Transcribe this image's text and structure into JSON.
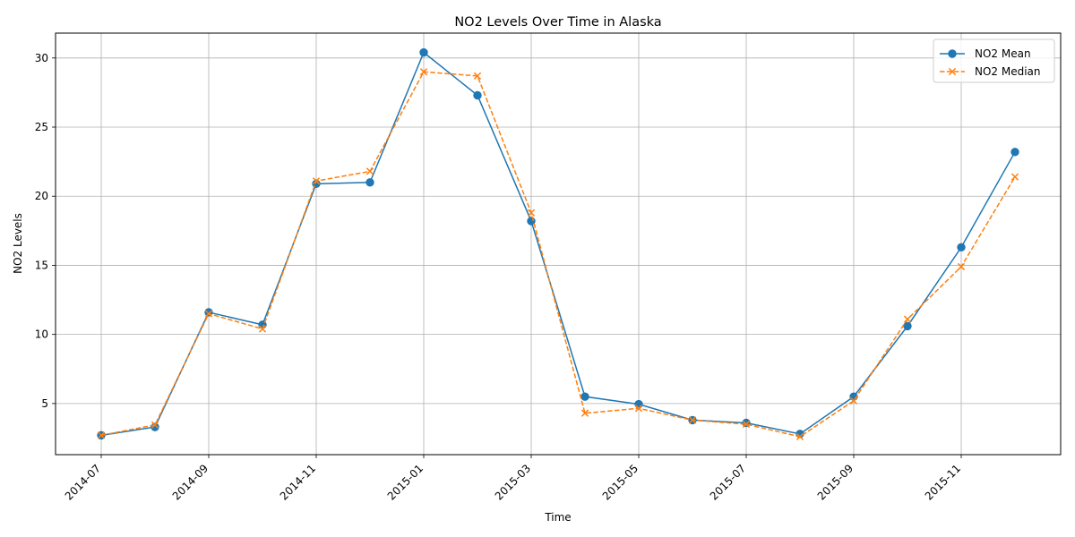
{
  "chart_data": {
    "type": "line",
    "title": "NO2 Levels Over Time in Alaska",
    "xlabel": "Time",
    "ylabel": "NO2 Levels",
    "x": [
      "2014-07",
      "2014-08",
      "2014-09",
      "2014-10",
      "2014-11",
      "2014-12",
      "2015-01",
      "2015-02",
      "2015-03",
      "2015-04",
      "2015-05",
      "2015-06",
      "2015-07",
      "2015-08",
      "2015-09",
      "2015-10",
      "2015-11",
      "2015-12"
    ],
    "x_ticks": [
      "2014-07",
      "2014-09",
      "2014-11",
      "2015-01",
      "2015-03",
      "2015-05",
      "2015-07",
      "2015-09",
      "2015-11"
    ],
    "y_ticks": [
      5,
      10,
      15,
      20,
      25,
      30
    ],
    "ylim": [
      1.3,
      31.8
    ],
    "grid": true,
    "legend_position": "top-right",
    "series": [
      {
        "name": "NO2 Mean",
        "color": "#1f77b4",
        "line_style": "solid",
        "marker": "circle",
        "values": [
          2.7,
          3.3,
          11.6,
          10.7,
          20.9,
          21.0,
          30.4,
          27.3,
          18.2,
          5.5,
          4.95,
          3.8,
          3.6,
          2.8,
          5.5,
          10.6,
          16.3,
          23.2
        ]
      },
      {
        "name": "NO2 Median",
        "color": "#ff7f0e",
        "line_style": "dashed",
        "marker": "x",
        "values": [
          2.7,
          3.45,
          11.5,
          10.4,
          21.1,
          21.8,
          29.0,
          28.7,
          18.8,
          4.3,
          4.65,
          3.8,
          3.5,
          2.6,
          5.2,
          11.1,
          14.9,
          21.4
        ]
      }
    ]
  }
}
